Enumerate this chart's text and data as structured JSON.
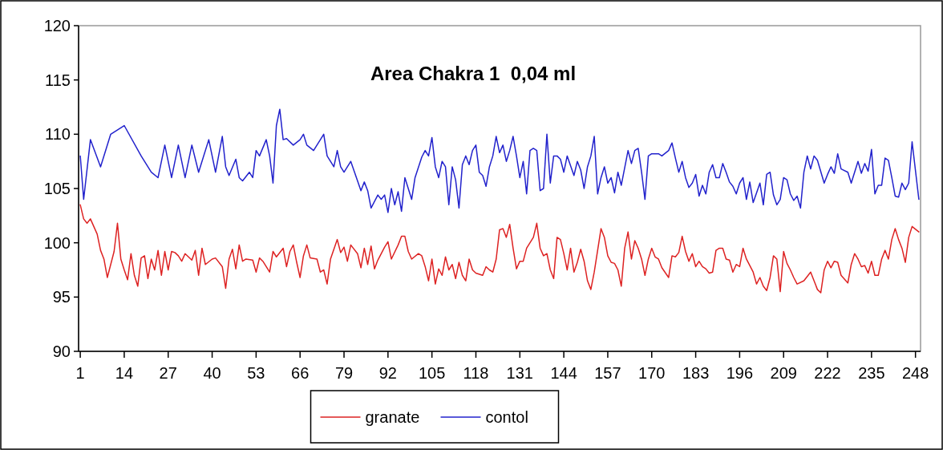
{
  "chart_data": {
    "type": "line",
    "title": "Area Chakra 1  0,04 ml",
    "xlim": [
      0.5,
      249.5
    ],
    "xticks": [
      1,
      14,
      27,
      40,
      53,
      66,
      79,
      92,
      105,
      118,
      131,
      144,
      157,
      170,
      183,
      196,
      209,
      222,
      235,
      248
    ],
    "ylim": [
      90,
      120
    ],
    "yticks": [
      90,
      95,
      100,
      105,
      110,
      115,
      120
    ],
    "grid": false,
    "legend": "bottom",
    "marker": "none",
    "line_style": "solid",
    "series": [
      {
        "name": "granate",
        "color": "#dd2222",
        "x": [
          1,
          2,
          3,
          4,
          5,
          6,
          7,
          8,
          9,
          11,
          12,
          13,
          14,
          15,
          16,
          17,
          18,
          19,
          20,
          21,
          22,
          23,
          24,
          25,
          26,
          27,
          28,
          29,
          30,
          31,
          32,
          34,
          35,
          36,
          37,
          38,
          40,
          41,
          43,
          44,
          45,
          46,
          47,
          48,
          49,
          50,
          52,
          53,
          54,
          55,
          57,
          58,
          59,
          61,
          62,
          63,
          64,
          65,
          66,
          67,
          68,
          69,
          71,
          72,
          73,
          74,
          75,
          77,
          78,
          79,
          80,
          81,
          83,
          84,
          85,
          86,
          87,
          88,
          89,
          91,
          92,
          93,
          95,
          96,
          97,
          98,
          99,
          101,
          102,
          103,
          104,
          105,
          106,
          107,
          108,
          109,
          110,
          111,
          112,
          113,
          114,
          115,
          116,
          117,
          118,
          120,
          121,
          122,
          123,
          124,
          125,
          126,
          127,
          128,
          129,
          130,
          131,
          132,
          133,
          134,
          135,
          136,
          137,
          138,
          139,
          140,
          141,
          142,
          143,
          144,
          145,
          146,
          147,
          148,
          149,
          150,
          151,
          152,
          153,
          154,
          155,
          156,
          157,
          158,
          159,
          160,
          161,
          162,
          163,
          164,
          165,
          166,
          167,
          168,
          169,
          170,
          171,
          172,
          173,
          175,
          176,
          177,
          178,
          179,
          180,
          181,
          182,
          183,
          184,
          185,
          186,
          187,
          188,
          189,
          190,
          191,
          192,
          193,
          194,
          195,
          196,
          197,
          198,
          200,
          201,
          202,
          203,
          204,
          205,
          206,
          207,
          208,
          209,
          210,
          211,
          212,
          213,
          215,
          217,
          218,
          219,
          220,
          221,
          222,
          223,
          224,
          225,
          226,
          228,
          229,
          230,
          231,
          232,
          233,
          234,
          235,
          236,
          237,
          238,
          239,
          240,
          241,
          242,
          243,
          244,
          245,
          246,
          247,
          249
        ],
        "values": [
          103.5,
          102.2,
          101.8,
          102.2,
          101.5,
          100.8,
          99.3,
          98.5,
          96.8,
          99.2,
          101.8,
          98.5,
          97.5,
          96.6,
          99,
          97,
          96,
          98.6,
          98.8,
          96.7,
          98.5,
          97.5,
          99.3,
          97,
          99.2,
          97.5,
          99.2,
          99.1,
          98.8,
          98.3,
          99,
          98.4,
          99.3,
          97,
          99.5,
          98,
          98.5,
          98.6,
          97.8,
          95.8,
          98.5,
          99.4,
          97.6,
          99.8,
          98.3,
          98.5,
          98.4,
          97.3,
          98.6,
          98.3,
          97.3,
          99.2,
          98.7,
          99.5,
          97.8,
          99.2,
          99.8,
          98.2,
          96.8,
          98.8,
          99.8,
          98.6,
          98.5,
          97.3,
          97.5,
          96.2,
          98.5,
          100.3,
          99.1,
          99.6,
          98.3,
          99.8,
          99,
          97.7,
          99.5,
          98,
          99.7,
          97.6,
          98.4,
          99.6,
          100.1,
          98.5,
          99.8,
          100.6,
          100.6,
          99.2,
          98.5,
          99,
          98.8,
          97.8,
          96.5,
          98.5,
          96.2,
          97.6,
          97,
          98.7,
          97.5,
          98,
          96.7,
          98.2,
          97,
          96.5,
          98.5,
          97.5,
          97.2,
          97,
          97.8,
          97.5,
          97.3,
          98.5,
          101.2,
          101.3,
          100.5,
          101.7,
          99.5,
          97.6,
          98.3,
          98.3,
          99.5,
          100,
          100.5,
          101.8,
          99.5,
          98.8,
          99,
          97.5,
          96.7,
          100.5,
          100.3,
          99,
          97.5,
          99.5,
          97.3,
          98.2,
          99.4,
          98.3,
          96.5,
          95.7,
          97.3,
          99.3,
          101.3,
          100.5,
          98.8,
          98.2,
          98.1,
          97.5,
          96,
          99.5,
          101,
          98.5,
          100.2,
          99.5,
          98.5,
          97,
          98.5,
          99.5,
          98.7,
          98.5,
          97.7,
          96.8,
          98.8,
          98.7,
          99.1,
          100.6,
          99.2,
          98.3,
          99,
          97.8,
          98.3,
          97.8,
          97.6,
          97.2,
          97.3,
          99.3,
          99.5,
          99.5,
          98.5,
          98.4,
          97.3,
          98,
          97.8,
          99.5,
          98.5,
          97.3,
          96.2,
          96.8,
          96,
          95.6,
          96.8,
          98.8,
          98.5,
          95.5,
          99.2,
          98.1,
          97.5,
          96.8,
          96.2,
          96.5,
          97.3,
          96.5,
          95.7,
          95.4,
          97.5,
          98.3,
          97.7,
          98.3,
          98.2,
          97,
          96.3,
          98,
          99,
          98.5,
          97.8,
          97.9,
          97.2,
          98.3,
          97,
          97,
          98.5,
          99.3,
          98.5,
          100.3,
          101.3,
          100.3,
          99.5,
          98.2,
          100.5,
          101.5,
          101
        ]
      },
      {
        "name": "contol",
        "color": "#2222cc",
        "x": [
          1,
          2,
          4,
          7,
          10,
          14,
          19,
          22,
          24,
          26,
          28,
          30,
          32,
          34,
          36,
          39,
          41,
          43,
          44,
          45,
          47,
          48,
          49,
          51,
          52,
          53,
          54,
          56,
          57,
          58,
          59,
          60,
          61,
          62,
          64,
          66,
          67,
          68,
          70,
          73,
          74,
          76,
          77,
          78,
          79,
          81,
          83,
          84,
          85,
          86,
          87,
          89,
          90,
          91,
          92,
          93,
          94,
          95,
          96,
          97,
          98,
          99,
          100,
          102,
          103,
          104,
          105,
          106,
          107,
          108,
          109,
          110,
          111,
          112,
          113,
          114,
          115,
          116,
          117,
          118,
          119,
          120,
          121,
          122,
          123,
          124,
          125,
          126,
          127,
          128,
          129,
          130,
          131,
          132,
          133,
          134,
          135,
          136,
          137,
          138,
          139,
          140,
          141,
          142,
          143,
          144,
          145,
          147,
          148,
          149,
          150,
          151,
          152,
          153,
          154,
          155,
          156,
          157,
          158,
          159,
          160,
          161,
          163,
          164,
          165,
          166,
          167,
          168,
          169,
          170,
          172,
          173,
          175,
          176,
          177,
          178,
          179,
          180,
          181,
          182,
          183,
          184,
          185,
          186,
          187,
          188,
          189,
          190,
          191,
          192,
          193,
          194,
          195,
          196,
          197,
          198,
          199,
          200,
          201,
          202,
          203,
          204,
          205,
          206,
          207,
          208,
          209,
          210,
          211,
          212,
          213,
          214,
          215,
          216,
          217,
          218,
          219,
          221,
          222,
          223,
          224,
          225,
          226,
          228,
          229,
          231,
          232,
          233,
          234,
          235,
          236,
          237,
          238,
          239,
          240,
          241,
          242,
          243,
          244,
          245,
          246,
          247,
          249
        ],
        "values": [
          108,
          104,
          109.5,
          107,
          110,
          110.8,
          108,
          106.5,
          106,
          109,
          106,
          109,
          106,
          109,
          106.5,
          109.5,
          106.5,
          109.8,
          107,
          106.2,
          107.7,
          106,
          105.7,
          106.5,
          106,
          108.5,
          108,
          109.5,
          108,
          105.5,
          110.8,
          112.3,
          109.5,
          109.6,
          109,
          109.5,
          110,
          109,
          108.5,
          110,
          108,
          107,
          108.5,
          107,
          106.5,
          107.5,
          105.7,
          104.8,
          105.6,
          104.8,
          103.2,
          104.4,
          104,
          104.4,
          102.8,
          105,
          103.5,
          104.7,
          102.9,
          106,
          105,
          104,
          106,
          107.9,
          108.5,
          108,
          109.7,
          107,
          106,
          107.5,
          107,
          103.5,
          107,
          105.8,
          103.2,
          107.2,
          108,
          107.2,
          108.5,
          109,
          106.5,
          106.2,
          105.2,
          107,
          108,
          109.8,
          108.3,
          109,
          107.5,
          108.5,
          109.8,
          108,
          106,
          107.5,
          104.5,
          108.5,
          108.7,
          108.5,
          104.8,
          105,
          110,
          105.5,
          108,
          108,
          107.7,
          106.5,
          108,
          106.2,
          107.5,
          106.7,
          105,
          107,
          108,
          109.8,
          104.5,
          106,
          107,
          105.5,
          106,
          104.6,
          106.5,
          105.3,
          108.5,
          107.3,
          108.5,
          108.7,
          106.5,
          104,
          108,
          108.2,
          108.2,
          108,
          108.5,
          109.2,
          107.8,
          106.5,
          107.5,
          106,
          105.1,
          105.5,
          106.3,
          104.3,
          105.3,
          104.5,
          106.5,
          107.2,
          106,
          106,
          107.3,
          106.5,
          105.6,
          105.2,
          104.5,
          105.5,
          106,
          104,
          105.6,
          103.7,
          104.6,
          105.5,
          103.5,
          106.3,
          106.5,
          104.4,
          103.5,
          104,
          106,
          105.8,
          104.5,
          103.9,
          104.3,
          103.2,
          106.5,
          108,
          106.8,
          108,
          107.6,
          105.5,
          106.3,
          107,
          106.4,
          108.2,
          106.8,
          106.5,
          105.5,
          107.5,
          106.4,
          107.3,
          106.6,
          108.6,
          104.5,
          105.3,
          105.3,
          107.8,
          107.6,
          106,
          104.3,
          104.2,
          105.5,
          104.9,
          105.5,
          109.3,
          104
        ]
      }
    ]
  }
}
